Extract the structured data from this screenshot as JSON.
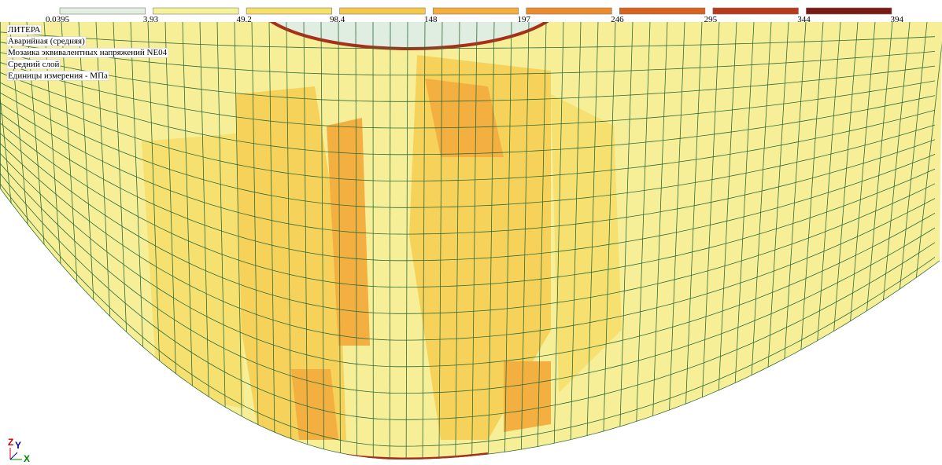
{
  "legend": {
    "ticks": [
      0.0395,
      3.93,
      49.2,
      98.4,
      148,
      197,
      246,
      295,
      344,
      394
    ],
    "colors": [
      "#e3efe3",
      "#f5f29a",
      "#f6e06a",
      "#f6c94a",
      "#f3ae3c",
      "#ec8c2c",
      "#d9621e",
      "#b83a18",
      "#7a1a12"
    ]
  },
  "info": {
    "lines": [
      "ЛИТЕРА",
      "Аварийная (средняя)",
      "Мозаика эквивалентных напряжений NE04",
      "Средний слой",
      "Единицы измерения - МПа"
    ]
  },
  "axes": {
    "z": "Z",
    "y": "Y",
    "x": "X"
  }
}
